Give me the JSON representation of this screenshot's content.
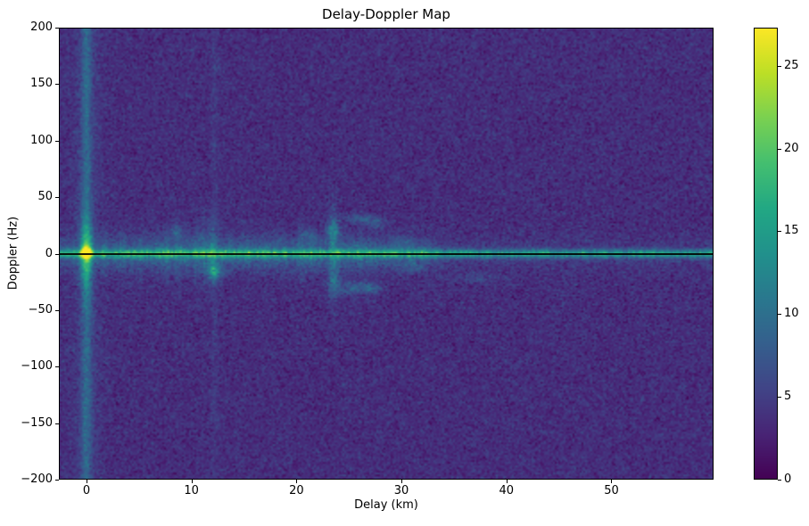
{
  "chart_data": {
    "type": "heatmap",
    "title": "Delay-Doppler Map",
    "xlabel": "Delay (km)",
    "ylabel": "Doppler (Hz)",
    "xlim": [
      -2.63,
      59.73
    ],
    "ylim": [
      -200,
      200
    ],
    "xticks": [
      0,
      10,
      20,
      30,
      40,
      50
    ],
    "yticks": [
      200,
      150,
      100,
      50,
      0,
      -50,
      -100,
      -150,
      -200
    ],
    "grid": false,
    "legend": "none",
    "colorbar": {
      "position": "right",
      "vmin": 0,
      "vmax": 27.3,
      "ticks": [
        0,
        5,
        10,
        15,
        20,
        25
      ],
      "colormap": "viridis"
    },
    "viridis_stops": [
      "#440154",
      "#482475",
      "#414487",
      "#355f8d",
      "#2a788e",
      "#21918c",
      "#22a884",
      "#44bf70",
      "#7ad151",
      "#bddf26",
      "#fde725"
    ],
    "noise": {
      "mean": 3.6,
      "std": 1.15,
      "seed": 1337
    },
    "features": {
      "zero_doppler_line": {
        "doppler_hz": 0,
        "color": "#000000"
      },
      "ridge": {
        "amp": 10.5,
        "doppler_sigma_hz": 2.6,
        "halo_amp": 3.2,
        "halo_sigma_hz": 10,
        "halo_fade_start_km": 32,
        "halo_min_amp": 1.2
      },
      "direct_path": {
        "delay_km": 0,
        "amp_full": 4.5,
        "sigma_km": 0.35,
        "halo_amp": 1.3,
        "halo_sigma_km": 1.1,
        "center_amp": 9,
        "center_sigma_hz": 22
      },
      "peak": {
        "delay_km": 0,
        "doppler_hz": 1,
        "amp": 24,
        "sigma_km": 0.28,
        "sigma_hz": 3
      },
      "faint_stripe": {
        "delay_km": 12.2,
        "amp": 1.1,
        "sigma_km": 0.25
      },
      "streaks": [
        [
          1.8,
          3.0,
          0.25,
          12
        ],
        [
          2.6,
          2.0,
          0.25,
          10
        ],
        [
          3.4,
          2.5,
          0.3,
          12
        ],
        [
          4.3,
          2.0,
          0.25,
          9
        ],
        [
          5.1,
          2.5,
          0.3,
          14
        ],
        [
          6.0,
          2.0,
          0.3,
          10
        ],
        [
          6.9,
          3.0,
          0.3,
          12
        ],
        [
          7.7,
          3.5,
          0.3,
          15
        ],
        [
          8.6,
          3.0,
          0.3,
          18
        ],
        [
          9.4,
          2.5,
          0.3,
          12
        ],
        [
          10.3,
          3.0,
          0.3,
          16
        ],
        [
          11.1,
          3.5,
          0.35,
          18
        ],
        [
          12.0,
          4.0,
          0.35,
          20
        ],
        [
          12.9,
          2.5,
          0.3,
          12
        ],
        [
          13.7,
          2.5,
          0.3,
          12
        ],
        [
          14.6,
          2.0,
          0.3,
          10
        ],
        [
          15.4,
          2.5,
          0.3,
          12
        ],
        [
          16.3,
          2.0,
          0.3,
          10
        ],
        [
          17.1,
          2.5,
          0.3,
          12
        ],
        [
          18.0,
          2.0,
          0.3,
          10
        ],
        [
          18.8,
          2.5,
          0.3,
          11
        ],
        [
          19.7,
          2.0,
          0.3,
          10
        ],
        [
          20.5,
          3.0,
          0.3,
          14
        ],
        [
          21.4,
          3.0,
          0.3,
          12
        ],
        [
          22.2,
          2.0,
          0.3,
          10
        ],
        [
          23.5,
          5.0,
          0.35,
          26
        ],
        [
          24.4,
          2.0,
          0.3,
          10
        ],
        [
          25.2,
          2.5,
          0.3,
          12
        ],
        [
          26.1,
          2.5,
          0.3,
          14
        ],
        [
          27.0,
          2.5,
          0.3,
          12
        ],
        [
          27.8,
          2.0,
          0.3,
          10
        ],
        [
          28.7,
          2.0,
          0.3,
          10
        ],
        [
          29.5,
          2.0,
          0.3,
          9
        ],
        [
          31.0,
          1.5,
          0.3,
          8
        ],
        [
          32.0,
          1.5,
          0.3,
          8
        ]
      ],
      "blobs": [
        [
          12.1,
          -15,
          6.0,
          0.4,
          4
        ],
        [
          12.5,
          -18,
          3.0,
          0.4,
          5
        ],
        [
          23.5,
          21,
          4.5,
          0.5,
          6
        ],
        [
          23.6,
          -27,
          3.5,
          0.45,
          7
        ],
        [
          26.2,
          31,
          4.0,
          1.0,
          3
        ],
        [
          27.7,
          27,
          3.5,
          0.7,
          3
        ],
        [
          25.9,
          -29,
          4.5,
          1.3,
          3
        ],
        [
          24.9,
          -34,
          3.0,
          0.7,
          2.5
        ],
        [
          27.2,
          -32,
          3.0,
          0.6,
          3
        ],
        [
          8.6,
          20,
          2.5,
          0.5,
          4
        ],
        [
          21.2,
          17,
          3.0,
          0.5,
          4
        ],
        [
          30.3,
          10,
          2.5,
          0.6,
          4
        ],
        [
          36.8,
          -22,
          2.0,
          1.8,
          3
        ],
        [
          30.8,
          -12,
          2.3,
          0.8,
          4
        ]
      ]
    }
  },
  "layout_text": {
    "title": "Delay-Doppler Map",
    "xlabel": "Delay (km)",
    "ylabel": "Doppler (Hz)"
  }
}
